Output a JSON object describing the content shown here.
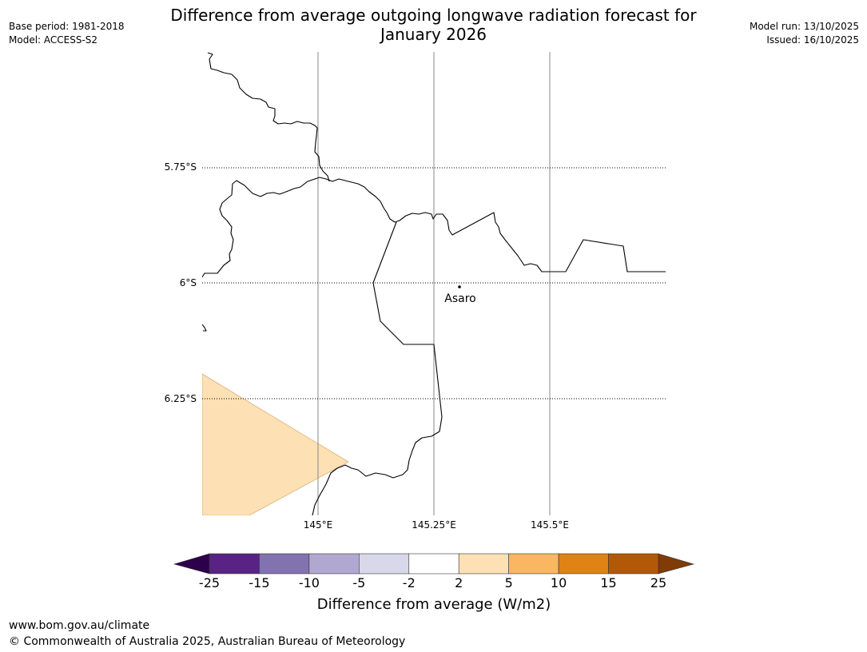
{
  "header": {
    "title_line1": "Difference from average outgoing longwave radiation forecast for",
    "title_line2": "January 2026",
    "base_period": "Base period: 1981-2018",
    "model": "Model: ACCESS-S2",
    "model_run": "Model run: 13/10/2025",
    "issued": "Issued: 16/10/2025"
  },
  "map": {
    "lat_labels": [
      "5.75°S",
      "6°S",
      "6.25°S"
    ],
    "lon_labels": [
      "145°E",
      "145.25°E",
      "145.5°E"
    ],
    "place": "Asaro",
    "shading_color": "#fde0b3",
    "shading_category": "2 to 5"
  },
  "colorbar": {
    "ticks": [
      "-25",
      "-15",
      "-10",
      "-5",
      "-2",
      "2",
      "5",
      "10",
      "15",
      "25"
    ],
    "colors": [
      "#582385",
      "#8272b0",
      "#b1a8d2",
      "#d8d8ea",
      "#ffffff",
      "#fde0b3",
      "#fbb661",
      "#e08214",
      "#b35806"
    ],
    "low_extend_color": "#2d004b",
    "high_extend_color": "#7f3b08",
    "label": "Difference from average (W/m2)"
  },
  "footer": {
    "url": "www.bom.gov.au/climate",
    "copyright": "© Commonwealth of Australia 2025, Australian Bureau of Meteorology"
  }
}
